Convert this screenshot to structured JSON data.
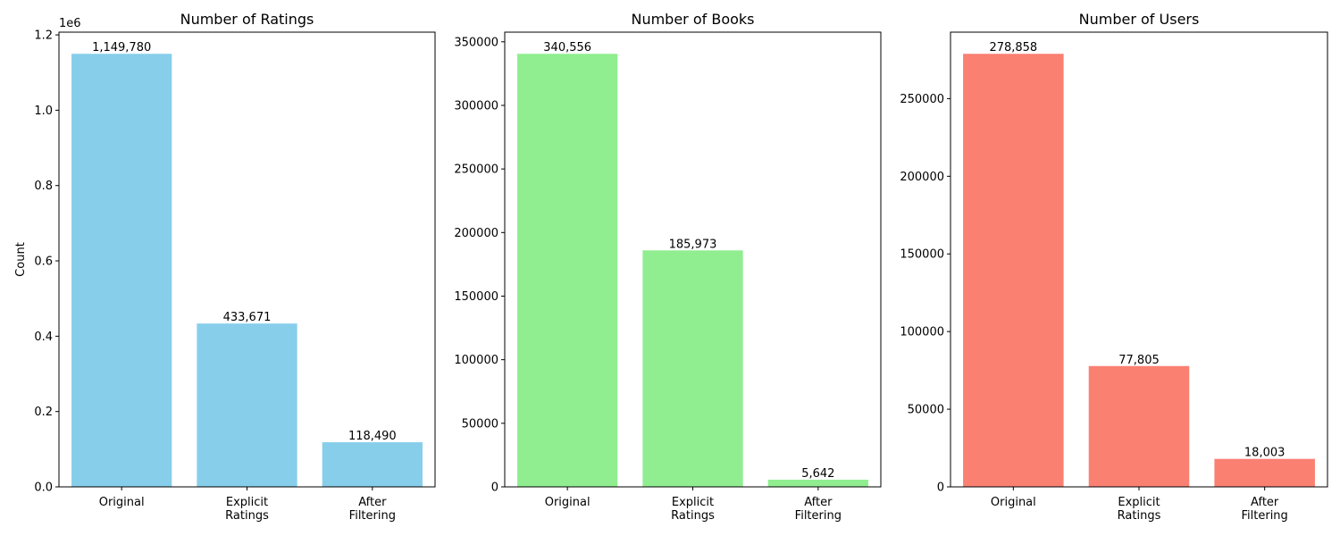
{
  "chart_data": [
    {
      "type": "bar",
      "title": "Number of Ratings",
      "ylabel": "Count",
      "y_offset_text": "1e6",
      "categories": [
        "Original",
        "Explicit\nRatings",
        "After\nFiltering"
      ],
      "values": [
        1149780,
        433671,
        118490
      ],
      "data_labels": [
        "1,149,780",
        "433,671",
        "118,490"
      ],
      "ylim": [
        0,
        1207269
      ],
      "yticks": [
        0,
        200000,
        400000,
        600000,
        800000,
        1000000,
        1200000
      ],
      "ytick_labels": [
        "0.0",
        "0.2",
        "0.4",
        "0.6",
        "0.8",
        "1.0",
        "1.2"
      ],
      "color": "#87ceeb",
      "grid": false
    },
    {
      "type": "bar",
      "title": "Number of Books",
      "ylabel": "",
      "y_offset_text": "",
      "categories": [
        "Original",
        "Explicit\nRatings",
        "After\nFiltering"
      ],
      "values": [
        340556,
        185973,
        5642
      ],
      "data_labels": [
        "340,556",
        "185,973",
        "5,642"
      ],
      "ylim": [
        0,
        357584
      ],
      "yticks": [
        0,
        50000,
        100000,
        150000,
        200000,
        250000,
        300000,
        350000
      ],
      "ytick_labels": [
        "0",
        "50000",
        "100000",
        "150000",
        "200000",
        "250000",
        "300000",
        "350000"
      ],
      "color": "#90ee90",
      "grid": false
    },
    {
      "type": "bar",
      "title": "Number of Users",
      "ylabel": "",
      "y_offset_text": "",
      "categories": [
        "Original",
        "Explicit\nRatings",
        "After\nFiltering"
      ],
      "values": [
        278858,
        77805,
        18003
      ],
      "data_labels": [
        "278,858",
        "77,805",
        "18,003"
      ],
      "ylim": [
        0,
        292801
      ],
      "yticks": [
        0,
        50000,
        100000,
        150000,
        200000,
        250000
      ],
      "ytick_labels": [
        "0",
        "50000",
        "100000",
        "150000",
        "200000",
        "250000"
      ],
      "color": "#fa8072",
      "grid": false
    }
  ]
}
